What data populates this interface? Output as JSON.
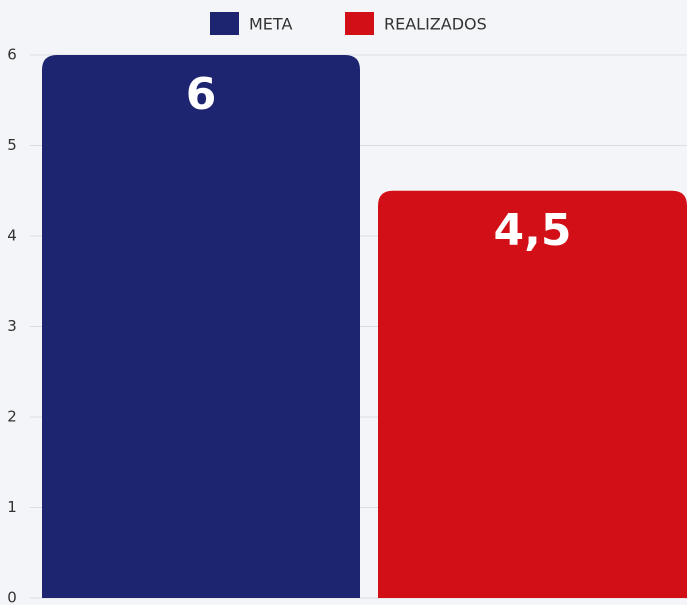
{
  "chart_data": {
    "type": "bar",
    "series": [
      {
        "name": "META",
        "color": "#1d2470",
        "values": [
          6
        ]
      },
      {
        "name": "REALIZADOS",
        "color": "#d20f17",
        "values": [
          4.5
        ],
        "value_labels": [
          "4,5"
        ]
      }
    ],
    "ylim": [
      0,
      6
    ],
    "yticks": [
      0,
      1,
      2,
      3,
      4,
      5,
      6
    ],
    "grid": true
  }
}
